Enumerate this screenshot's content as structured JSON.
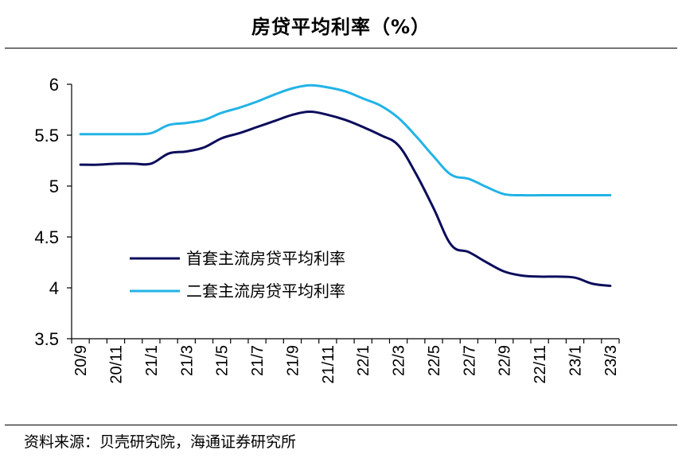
{
  "title": "房贷平均利率（%）",
  "source": "资料来源：贝壳研究院，海通证券研究所",
  "chart_data": {
    "type": "line",
    "title": "房贷平均利率（%）",
    "xlabel": "",
    "ylabel": "",
    "ylim": [
      3.5,
      6
    ],
    "yticks": [
      "6",
      "5.5",
      "5",
      "4.5",
      "4",
      "3.5"
    ],
    "ytick_values": [
      6,
      5.5,
      5,
      4.5,
      4,
      3.5
    ],
    "x_tick_labels": [
      "20/9",
      "20/11",
      "21/1",
      "21/3",
      "21/5",
      "21/7",
      "21/9",
      "21/11",
      "22/1",
      "22/3",
      "22/5",
      "22/7",
      "22/9",
      "22/11",
      "23/1",
      "23/3"
    ],
    "x": [
      "20/9",
      "20/10",
      "20/11",
      "20/12",
      "21/1",
      "21/2",
      "21/3",
      "21/4",
      "21/5",
      "21/6",
      "21/7",
      "21/8",
      "21/9",
      "21/10",
      "21/11",
      "21/12",
      "22/1",
      "22/2",
      "22/3",
      "22/4",
      "22/5",
      "22/6",
      "22/7",
      "22/8",
      "22/9",
      "22/10",
      "22/11",
      "22/12",
      "23/1",
      "23/2",
      "23/3"
    ],
    "grid": false,
    "legend_position": "center-left",
    "series": [
      {
        "name": "首套主流房贷平均利率",
        "color": "#0c0c5c",
        "values": [
          5.21,
          5.21,
          5.22,
          5.22,
          5.22,
          5.32,
          5.34,
          5.38,
          5.47,
          5.52,
          5.58,
          5.64,
          5.7,
          5.73,
          5.7,
          5.65,
          5.58,
          5.5,
          5.4,
          5.12,
          4.78,
          4.42,
          4.35,
          4.25,
          4.16,
          4.12,
          4.11,
          4.11,
          4.1,
          4.04,
          4.02
        ]
      },
      {
        "name": "二套主流房贷平均利率",
        "color": "#22b3e6",
        "values": [
          5.51,
          5.51,
          5.51,
          5.51,
          5.52,
          5.6,
          5.62,
          5.65,
          5.72,
          5.77,
          5.83,
          5.9,
          5.96,
          5.99,
          5.97,
          5.93,
          5.86,
          5.79,
          5.67,
          5.49,
          5.29,
          5.11,
          5.07,
          4.99,
          4.92,
          4.91,
          4.91,
          4.91,
          4.91,
          4.91,
          4.91
        ]
      }
    ]
  }
}
